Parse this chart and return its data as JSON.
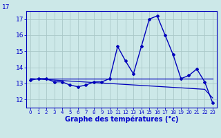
{
  "title": "Graphe des températures (°c)",
  "x_hours": [
    0,
    1,
    2,
    3,
    4,
    5,
    6,
    7,
    8,
    9,
    10,
    11,
    12,
    13,
    14,
    15,
    16,
    17,
    18,
    19,
    20,
    21,
    22,
    23
  ],
  "temp_line": [
    13.2,
    13.3,
    13.3,
    13.1,
    13.1,
    12.9,
    12.8,
    12.9,
    13.1,
    13.1,
    13.3,
    15.3,
    14.4,
    13.6,
    15.3,
    17.0,
    17.2,
    16.0,
    14.8,
    13.3,
    13.5,
    13.9,
    13.1,
    11.8
  ],
  "line1_flat": [
    13.3,
    13.3,
    13.3,
    13.3,
    13.3,
    13.3,
    13.3,
    13.3,
    13.3,
    13.3,
    13.3,
    13.3,
    13.3,
    13.3,
    13.3,
    13.3,
    13.3,
    13.3,
    13.3,
    13.3,
    13.3,
    13.3,
    13.3,
    13.3
  ],
  "line2_diagonal": [
    13.3,
    13.27,
    13.24,
    13.21,
    13.18,
    13.15,
    13.12,
    13.09,
    13.06,
    13.03,
    13.0,
    12.97,
    12.94,
    12.91,
    12.88,
    12.85,
    12.82,
    12.79,
    12.76,
    12.73,
    12.7,
    12.67,
    12.64,
    12.1
  ],
  "ylim": [
    11.5,
    17.5
  ],
  "yticks": [
    12,
    13,
    14,
    15,
    16,
    17
  ],
  "ytop_label": "17",
  "bg_color": "#cce8e8",
  "grid_color": "#aac8c8",
  "line_color": "#0000bb",
  "axes_color": "#0000bb",
  "tick_label_color": "#0000cc",
  "xlabel_color": "#0000cc"
}
